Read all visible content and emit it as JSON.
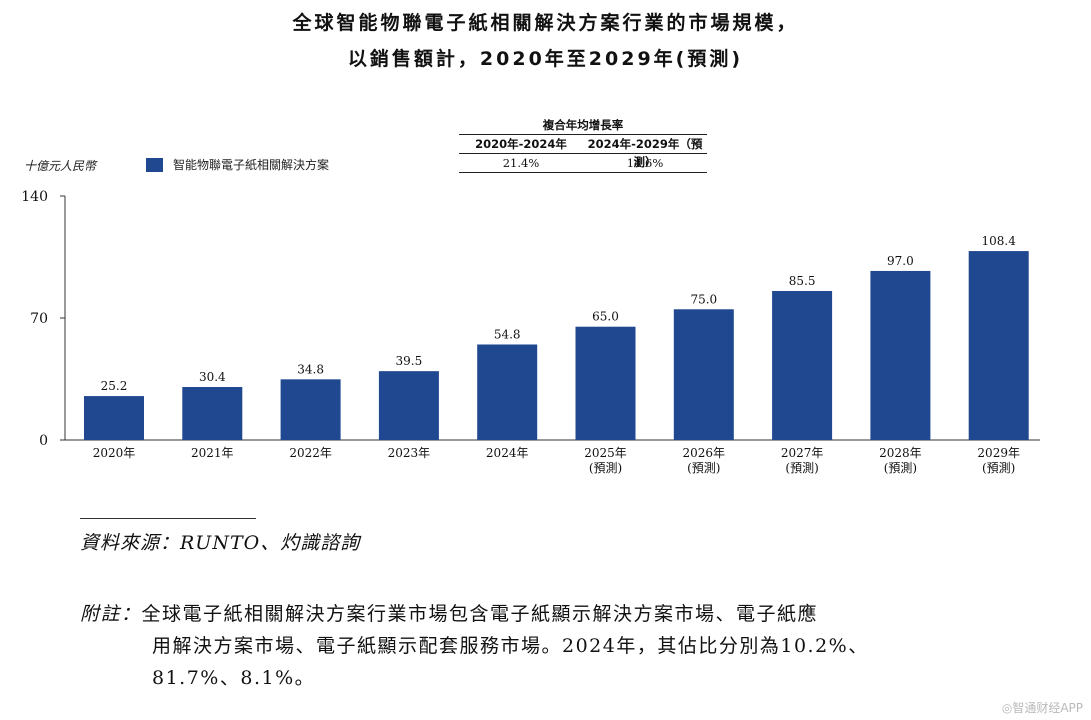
{
  "title": {
    "line1": "全球智能物聯電子紙相關解決方案行業的市場規模，",
    "line2": "以銷售額計，2020年至2029年(預測)"
  },
  "cagr_table": {
    "header": "複合年均增長率",
    "periods": [
      "2020年-2024年",
      "2024年-2029年（預測）"
    ],
    "values": [
      "21.4%",
      "14.6%"
    ]
  },
  "unit_label": "十億元人民幣",
  "legend_label": "智能物聯電子紙相關解決方案",
  "chart_data": {
    "type": "bar",
    "categories": [
      "2020年",
      "2021年",
      "2022年",
      "2023年",
      "2024年",
      "2025年",
      "2026年",
      "2027年",
      "2028年",
      "2029年"
    ],
    "category_sublabels": [
      "",
      "",
      "",
      "",
      "",
      "(預測)",
      "(預測)",
      "(預測)",
      "(預測)",
      "(預測)"
    ],
    "series": [
      {
        "name": "智能物聯電子紙相關解決方案",
        "values": [
          25.2,
          30.4,
          34.8,
          39.5,
          54.8,
          65.0,
          75.0,
          85.5,
          97.0,
          108.4
        ],
        "value_labels": [
          "25.2",
          "30.4",
          "34.8",
          "39.5",
          "54.8",
          "65.0",
          "75.0",
          "85.5",
          "97.0",
          "108.4"
        ],
        "color": "#1f4891"
      }
    ],
    "yticks": [
      "0",
      "70",
      "140"
    ],
    "ylim": [
      0,
      140
    ],
    "grid": false
  },
  "source": "資料來源：RUNTO、灼識諮詢",
  "note": {
    "label": "附註：",
    "line1": "全球電子紙相關解決方案行業市場包含電子紙顯示解決方案市場、電子紙應",
    "line2": "用解決方案市場、電子紙顯示配套服務市場。2024年，其佔比分別為10.2%、",
    "line3": "81.7%、8.1%。"
  },
  "watermark": "◎智通财经APP"
}
